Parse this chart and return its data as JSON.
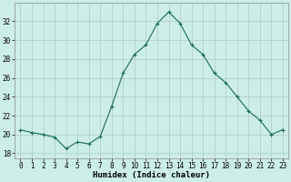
{
  "x": [
    0,
    1,
    2,
    3,
    4,
    5,
    6,
    7,
    8,
    9,
    10,
    11,
    12,
    13,
    14,
    15,
    16,
    17,
    18,
    19,
    20,
    21,
    22,
    23
  ],
  "y": [
    20.5,
    20.2,
    20.0,
    19.7,
    18.5,
    19.2,
    19.0,
    19.8,
    23.0,
    26.5,
    28.5,
    29.5,
    31.8,
    33.0,
    31.8,
    29.5,
    28.5,
    26.5,
    25.5,
    24.0,
    22.5,
    21.5,
    20.0,
    20.5
  ],
  "line_color": "#1a6b5a",
  "marker": "+",
  "marker_size": 3,
  "marker_lw": 0.8,
  "bg_color": "#cceee8",
  "grid_color": "#b0c8c8",
  "xlabel": "Humidex (Indice chaleur)",
  "ylim": [
    17.5,
    34
  ],
  "xlim": [
    -0.5,
    23.5
  ],
  "yticks": [
    18,
    20,
    22,
    24,
    26,
    28,
    30,
    32
  ],
  "xticks": [
    0,
    1,
    2,
    3,
    4,
    5,
    6,
    7,
    8,
    9,
    10,
    11,
    12,
    13,
    14,
    15,
    16,
    17,
    18,
    19,
    20,
    21,
    22,
    23
  ],
  "xlabel_fontsize": 6.5,
  "tick_fontsize": 5.5,
  "line_width": 0.8
}
